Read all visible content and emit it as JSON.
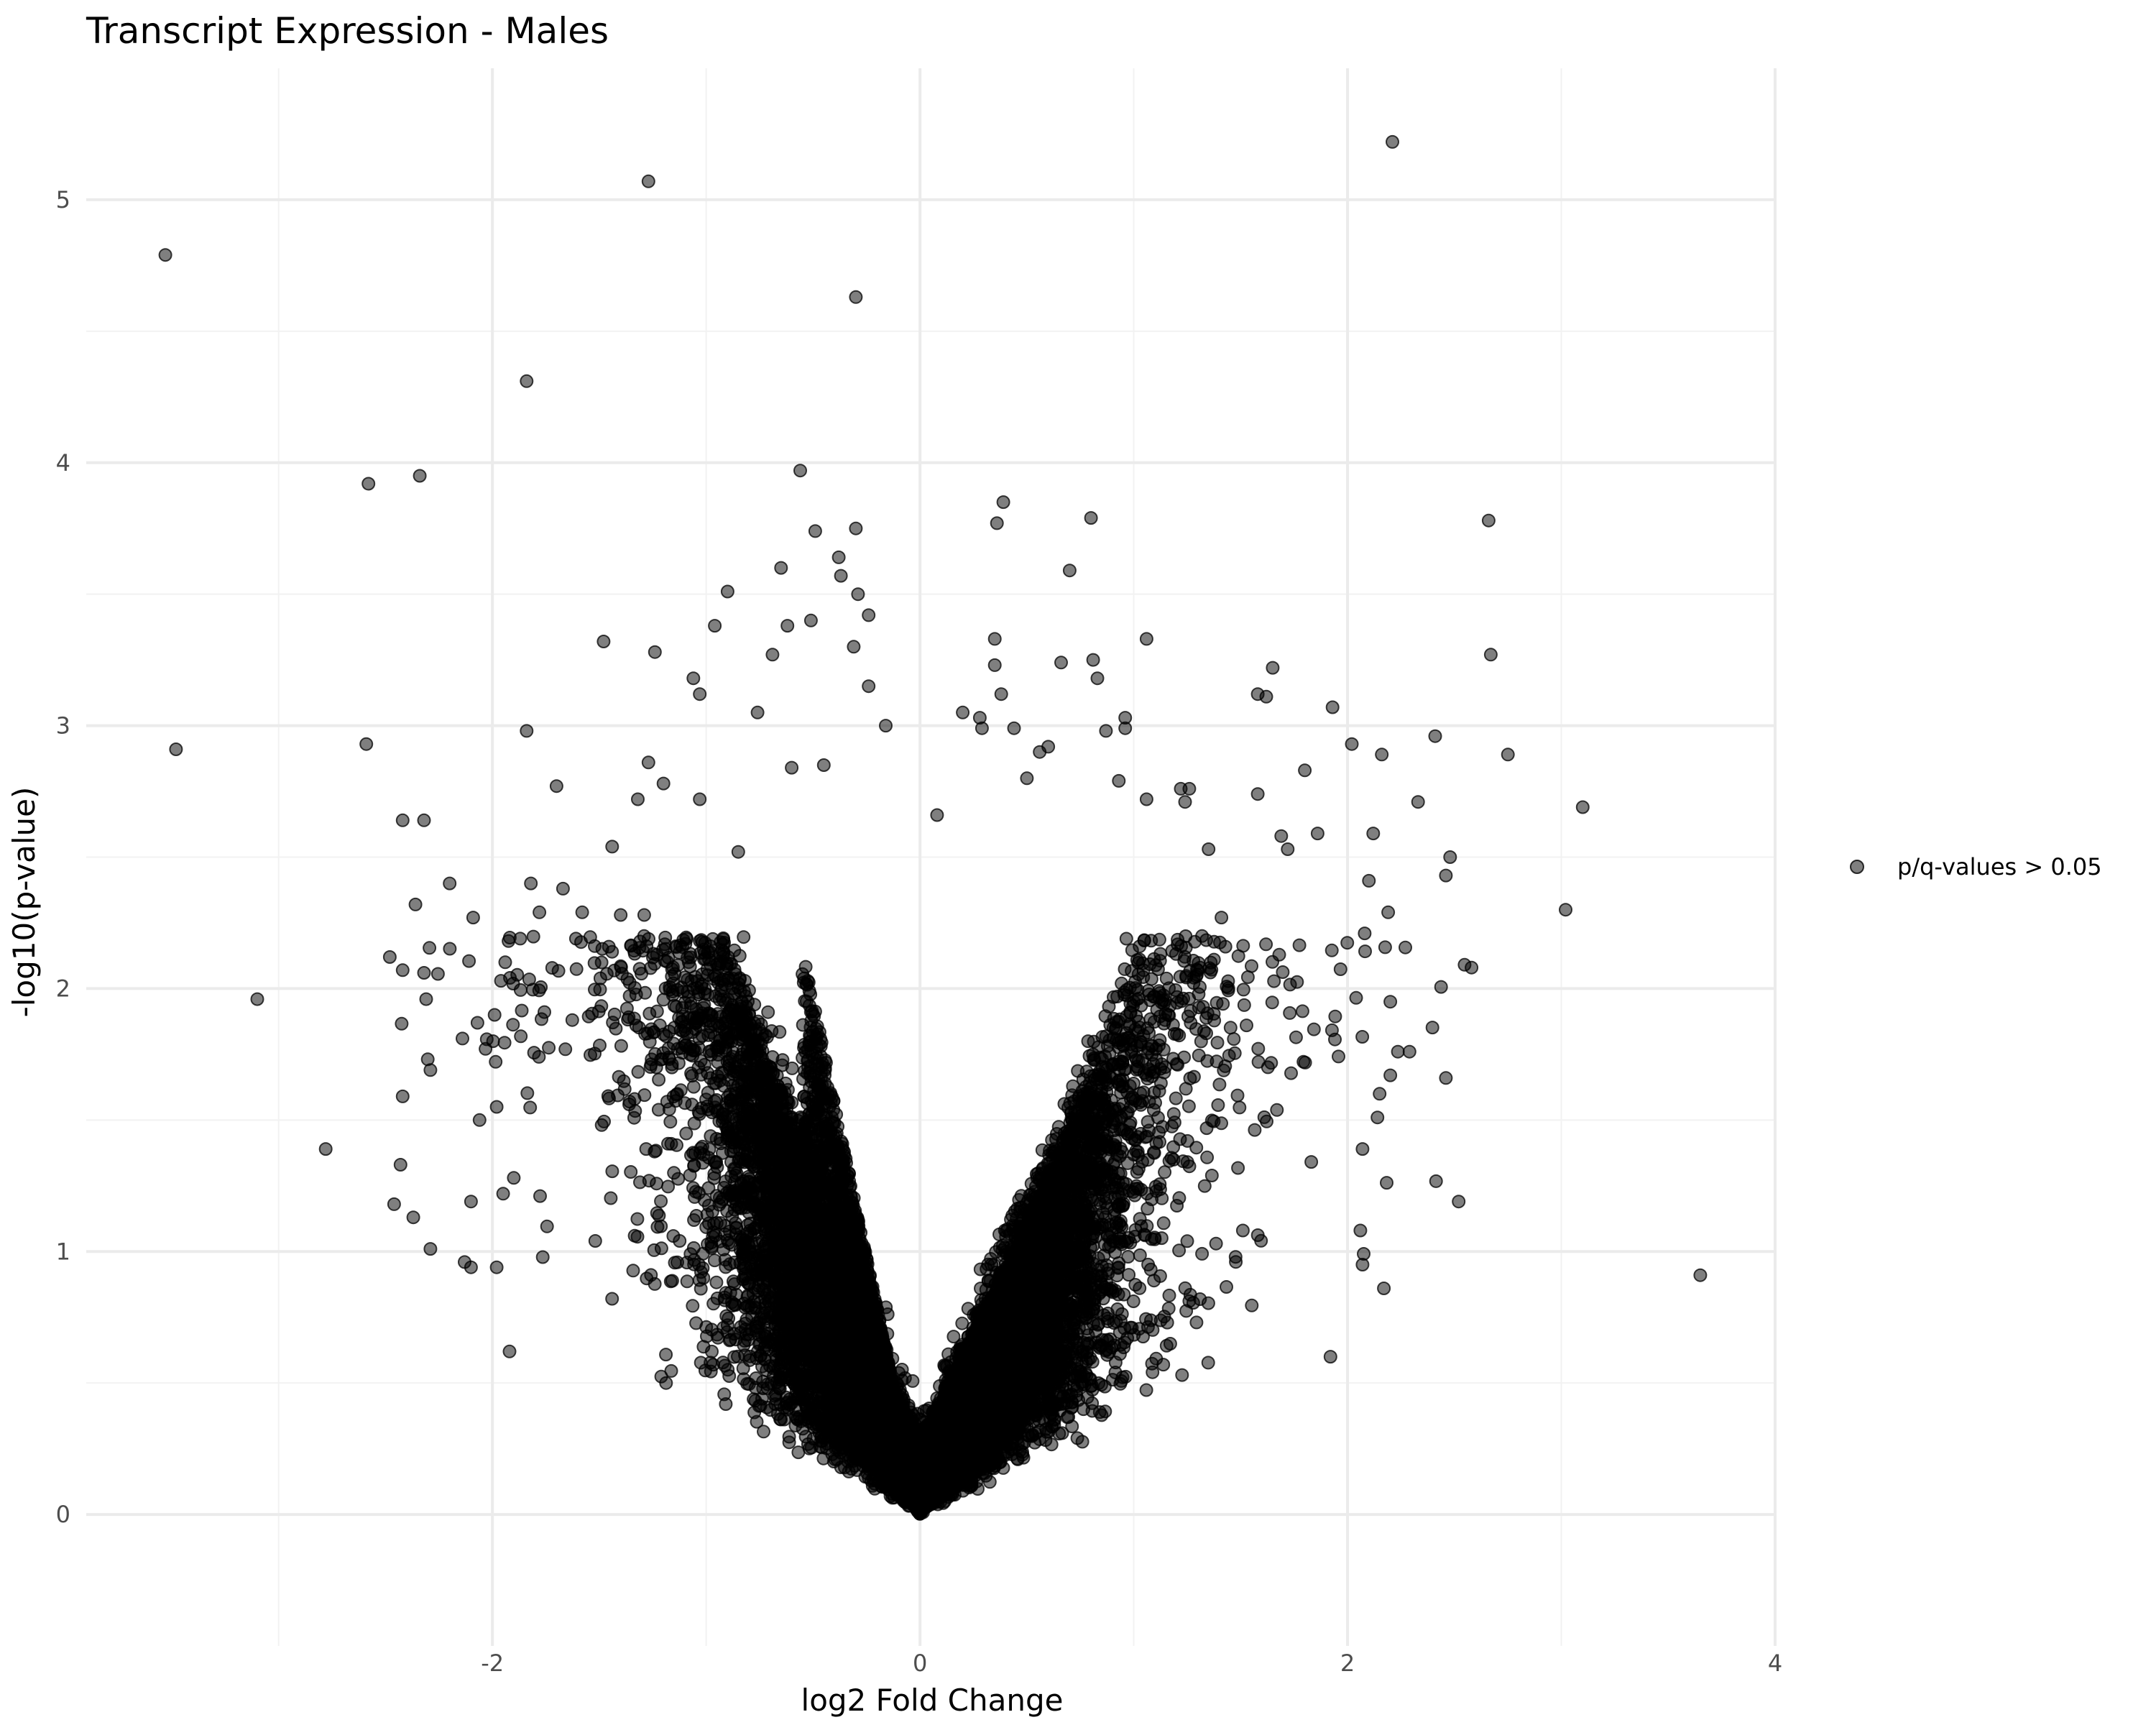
{
  "chart_data": {
    "type": "scatter",
    "title": "Transcript Expression - Males",
    "xlabel": "log2 Fold Change",
    "ylabel": "-log10(p-value)",
    "xlim": [
      -3.9,
      4.0
    ],
    "ylim": [
      -0.5,
      5.5
    ],
    "x_ticks": [
      -2,
      0,
      2,
      4
    ],
    "y_ticks": [
      0,
      1,
      2,
      3,
      4,
      5
    ],
    "grid": true,
    "legend_position": "right",
    "legend": [
      {
        "label": "p/q-values > 0.05",
        "color": "#000000"
      }
    ],
    "point_color": "#000000",
    "point_opacity": 0.5,
    "series": [
      {
        "name": "p/q-values > 0.05",
        "dense_cloud": {
          "description_count": 20000,
          "left_arm_slope": 2.3,
          "right_arm_slope": 2.0
        },
        "points": [
          [
            -3.53,
            4.79
          ],
          [
            -3.48,
            2.91
          ],
          [
            -3.1,
            1.96
          ],
          [
            -2.78,
            1.39
          ],
          [
            -2.58,
            3.92
          ],
          [
            -2.59,
            2.93
          ],
          [
            -2.34,
            3.95
          ],
          [
            -2.42,
            2.64
          ],
          [
            -2.32,
            2.64
          ],
          [
            -2.48,
            2.12
          ],
          [
            -2.36,
            2.32
          ],
          [
            -2.42,
            2.07
          ],
          [
            -2.2,
            2.4
          ],
          [
            -2.32,
            2.06
          ],
          [
            -2.31,
            1.96
          ],
          [
            -2.42,
            1.59
          ],
          [
            -2.29,
            1.69
          ],
          [
            -2.46,
            1.18
          ],
          [
            -2.43,
            1.33
          ],
          [
            -2.37,
            1.13
          ],
          [
            -2.29,
            1.01
          ],
          [
            -2.14,
            1.81
          ],
          [
            -2.09,
            2.27
          ],
          [
            -1.84,
            4.31
          ],
          [
            -1.84,
            2.98
          ],
          [
            -1.7,
            2.77
          ],
          [
            -1.27,
            5.07
          ],
          [
            -0.3,
            4.63
          ],
          [
            -0.56,
            3.97
          ],
          [
            -0.49,
            3.74
          ],
          [
            -0.3,
            3.75
          ],
          [
            -0.38,
            3.64
          ],
          [
            -0.65,
            3.6
          ],
          [
            -0.37,
            3.57
          ],
          [
            -0.29,
            3.5
          ],
          [
            -0.24,
            3.42
          ],
          [
            -0.9,
            3.51
          ],
          [
            -0.96,
            3.38
          ],
          [
            -0.62,
            3.38
          ],
          [
            -0.51,
            3.4
          ],
          [
            -0.69,
            3.27
          ],
          [
            -1.48,
            3.32
          ],
          [
            -1.24,
            3.28
          ],
          [
            -1.06,
            3.18
          ],
          [
            -1.03,
            3.12
          ],
          [
            -0.76,
            3.05
          ],
          [
            -0.31,
            3.3
          ],
          [
            -0.24,
            3.15
          ],
          [
            -0.16,
            3.0
          ],
          [
            -1.27,
            2.86
          ],
          [
            -1.32,
            2.72
          ],
          [
            -1.2,
            2.78
          ],
          [
            -1.03,
            2.72
          ],
          [
            -1.44,
            2.54
          ],
          [
            -1.29,
            2.28
          ],
          [
            -0.85,
            2.52
          ],
          [
            -0.6,
            2.84
          ],
          [
            -0.45,
            2.85
          ],
          [
            -1.82,
            2.4
          ],
          [
            -1.67,
            2.38
          ],
          [
            -1.78,
            2.29
          ],
          [
            -1.58,
            2.29
          ],
          [
            -1.4,
            2.28
          ],
          [
            -1.87,
            2.19
          ],
          [
            -1.94,
            2.1
          ],
          [
            -1.99,
            1.9
          ],
          [
            -2.07,
            1.87
          ],
          [
            -1.98,
            1.55
          ],
          [
            -2.06,
            1.5
          ],
          [
            -1.9,
            1.28
          ],
          [
            -1.95,
            1.22
          ],
          [
            -2.1,
            1.19
          ],
          [
            -1.98,
            0.94
          ],
          [
            -2.1,
            0.94
          ],
          [
            -2.13,
            0.96
          ],
          [
            -1.92,
            0.62
          ],
          [
            2.21,
            5.22
          ],
          [
            2.66,
            3.78
          ],
          [
            2.67,
            3.27
          ],
          [
            2.75,
            2.89
          ],
          [
            3.1,
            2.69
          ],
          [
            3.02,
            2.3
          ],
          [
            2.58,
            2.08
          ],
          [
            2.46,
            1.66
          ],
          [
            2.52,
            1.19
          ],
          [
            3.65,
            0.91
          ],
          [
            2.41,
            2.96
          ],
          [
            2.33,
            2.71
          ],
          [
            2.48,
            2.5
          ],
          [
            2.46,
            2.43
          ],
          [
            2.16,
            2.89
          ],
          [
            2.02,
            2.93
          ],
          [
            2.12,
            2.59
          ],
          [
            2.19,
            2.29
          ],
          [
            2.1,
            2.41
          ],
          [
            2.08,
            2.21
          ],
          [
            2.2,
            1.95
          ],
          [
            2.29,
            1.76
          ],
          [
            2.2,
            1.67
          ],
          [
            2.15,
            1.6
          ],
          [
            2.14,
            1.51
          ],
          [
            2.07,
            1.39
          ],
          [
            2.06,
            1.08
          ],
          [
            2.07,
            0.95
          ],
          [
            2.17,
            0.86
          ],
          [
            1.92,
            0.6
          ],
          [
            0.39,
            3.85
          ],
          [
            0.36,
            3.77
          ],
          [
            0.8,
            3.79
          ],
          [
            0.7,
            3.59
          ],
          [
            0.35,
            3.33
          ],
          [
            0.35,
            3.23
          ],
          [
            0.38,
            3.12
          ],
          [
            0.81,
            3.25
          ],
          [
            0.83,
            3.18
          ],
          [
            0.66,
            3.24
          ],
          [
            1.06,
            3.33
          ],
          [
            1.65,
            3.22
          ],
          [
            1.58,
            3.12
          ],
          [
            1.62,
            3.11
          ],
          [
            1.93,
            3.07
          ],
          [
            1.8,
            2.83
          ],
          [
            1.58,
            2.74
          ],
          [
            1.86,
            2.59
          ],
          [
            1.69,
            2.58
          ],
          [
            1.72,
            2.53
          ],
          [
            0.96,
            3.03
          ],
          [
            0.96,
            2.99
          ],
          [
            0.87,
            2.98
          ],
          [
            0.93,
            2.79
          ],
          [
            1.22,
            2.76
          ],
          [
            1.26,
            2.76
          ],
          [
            1.06,
            2.72
          ],
          [
            1.24,
            2.71
          ],
          [
            1.35,
            2.53
          ],
          [
            1.41,
            2.27
          ],
          [
            0.2,
            3.05
          ],
          [
            0.28,
            3.03
          ],
          [
            0.29,
            2.99
          ],
          [
            0.44,
            2.99
          ],
          [
            0.6,
            2.92
          ],
          [
            0.56,
            2.9
          ],
          [
            0.5,
            2.8
          ],
          [
            0.08,
            2.66
          ]
        ]
      }
    ]
  }
}
